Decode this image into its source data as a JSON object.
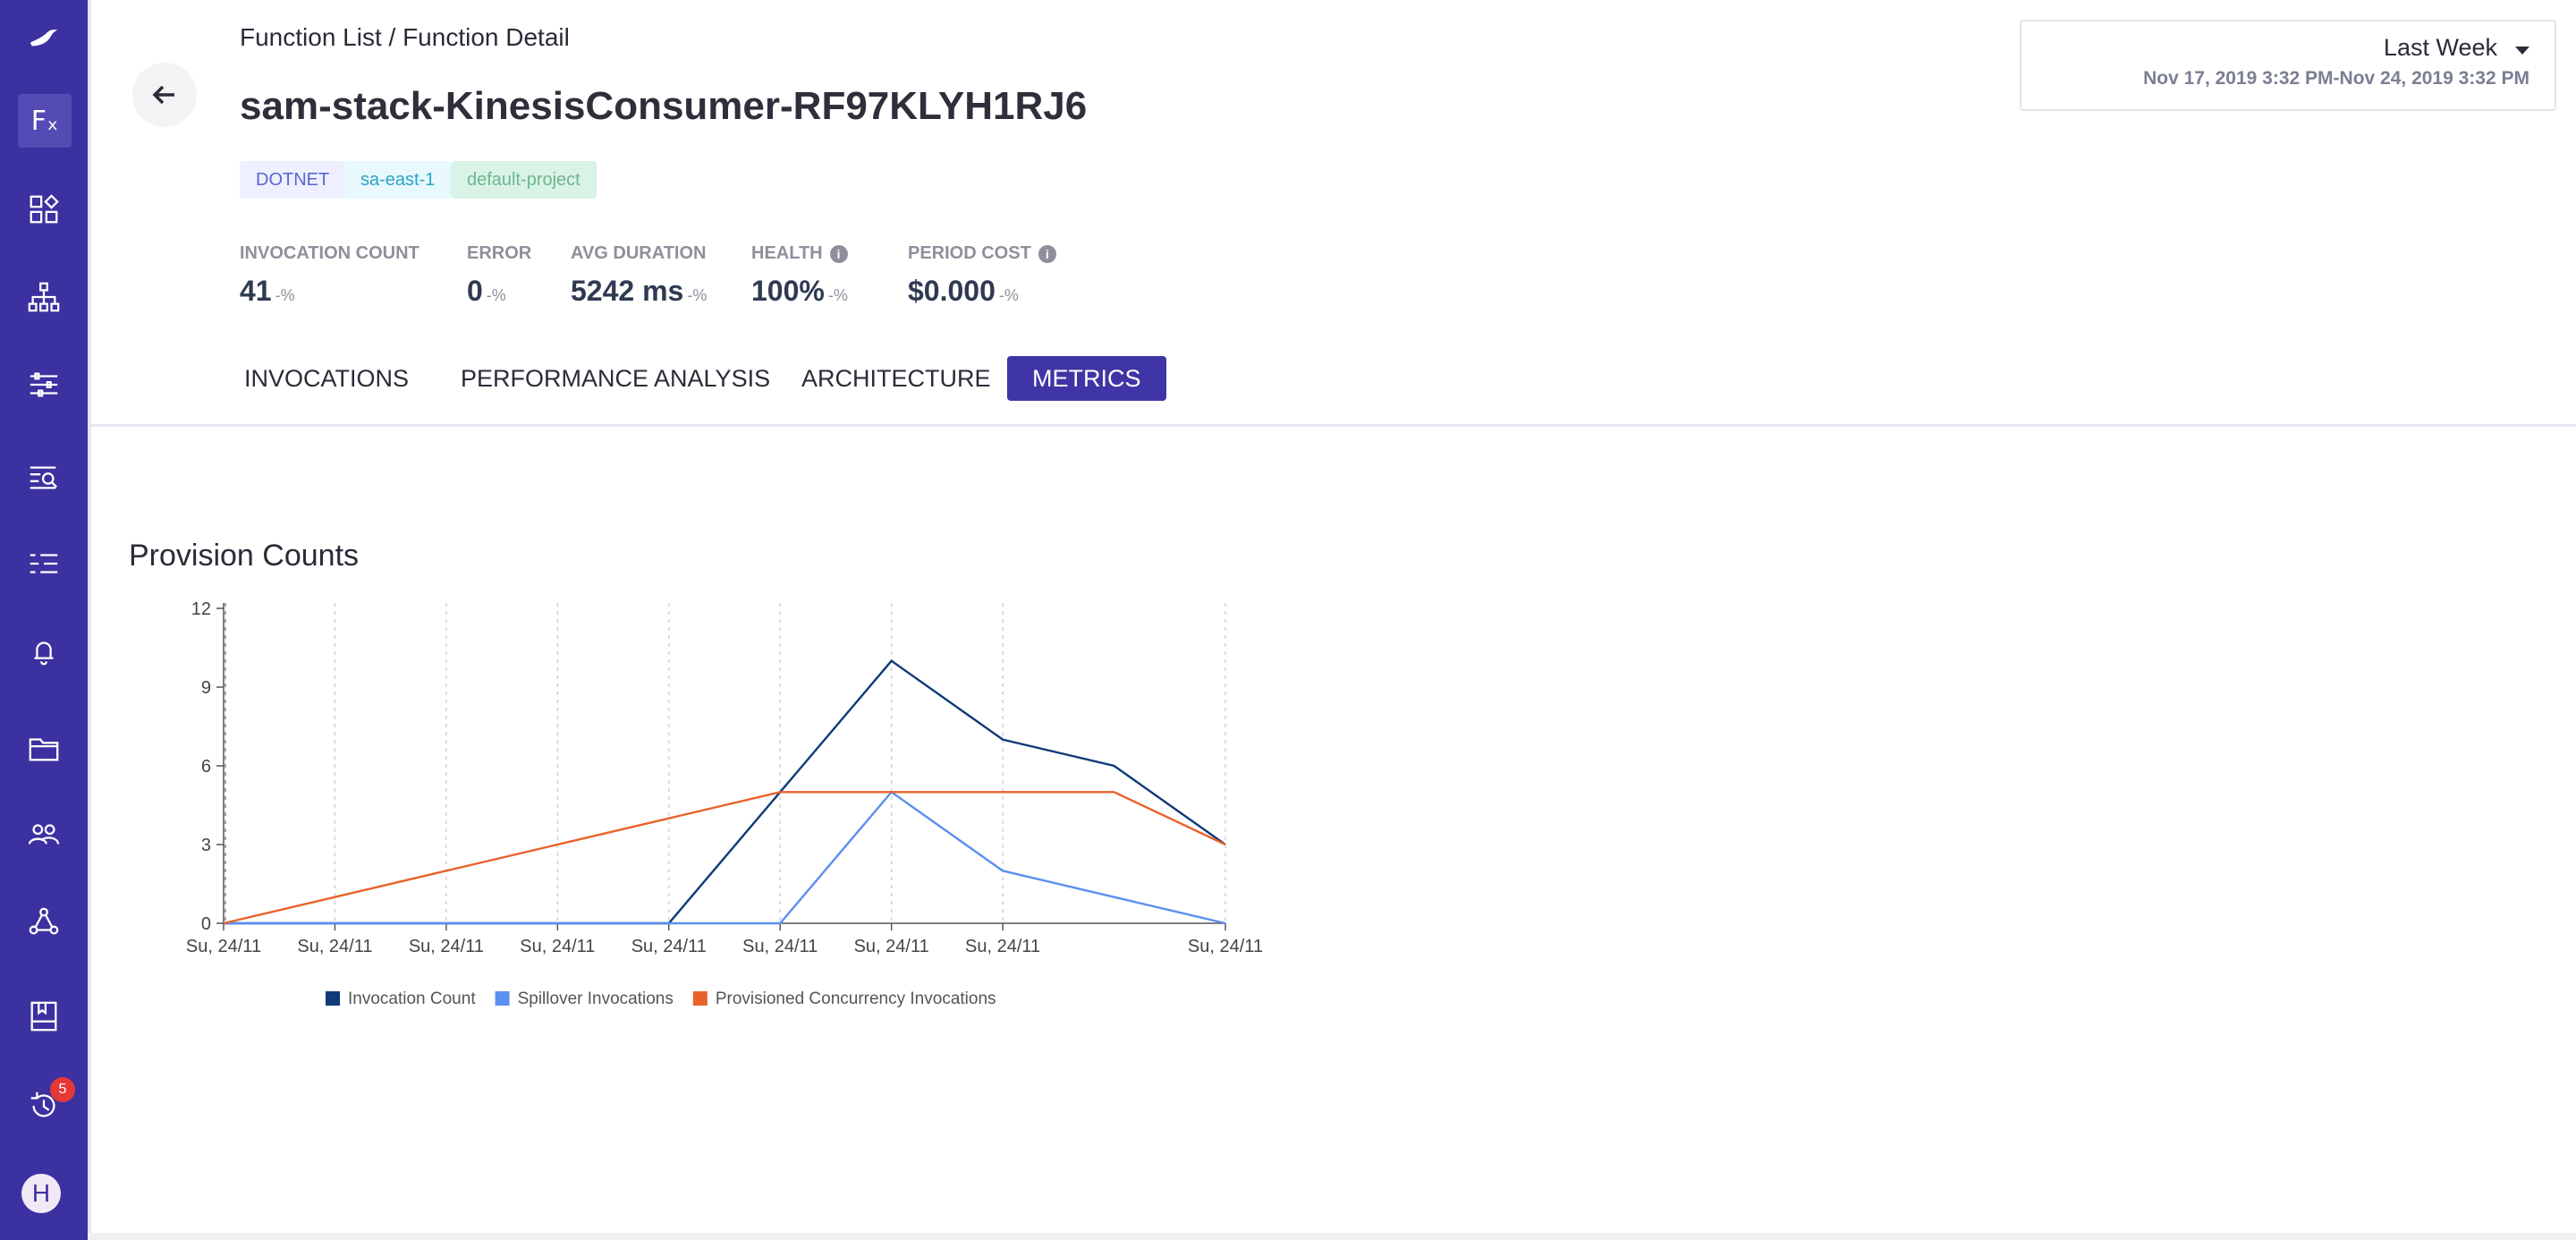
{
  "sidebar": {
    "fx_label": "Fₓ",
    "notification_count": "5",
    "avatar_initial": "H"
  },
  "header": {
    "breadcrumb": "Function List / Function Detail",
    "title": "sam-stack-KinesisConsumer-RF97KLYH1RJ6",
    "tags": {
      "runtime": "DOTNET",
      "region": "sa-east-1",
      "project": "default-project"
    }
  },
  "stats": {
    "invocation_count": {
      "label": "INVOCATION COUNT",
      "value": "41",
      "delta": "-%"
    },
    "error": {
      "label": "ERROR",
      "value": "0",
      "delta": "-%"
    },
    "avg_duration": {
      "label": "AVG DURATION",
      "value": "5242 ms",
      "delta": "-%"
    },
    "health": {
      "label": "HEALTH",
      "value": "100%",
      "delta": "-%"
    },
    "period_cost": {
      "label": "PERIOD COST",
      "value": "$0.000",
      "delta": "-%"
    }
  },
  "tabs": {
    "invocations": "INVOCATIONS",
    "performance": "PERFORMANCE ANALYSIS",
    "architecture": "ARCHITECTURE",
    "metrics": "METRICS"
  },
  "date_range": {
    "preset": "Last Week",
    "range_text": "Nov 17, 2019 3:32 PM-Nov 24, 2019 3:32 PM"
  },
  "chart_data": {
    "type": "line",
    "title": "Provision Counts",
    "x": [
      "Su, 24/11",
      "Su, 24/11",
      "Su, 24/11",
      "Su, 24/11",
      "Su, 24/11",
      "Su, 24/11",
      "Su, 24/11",
      "Su, 24/11",
      "",
      "Su, 24/11"
    ],
    "ylim": [
      0,
      12
    ],
    "yticks": [
      0,
      3,
      6,
      9,
      12
    ],
    "grid": "vertical-dashed",
    "legend_position": "bottom",
    "series": [
      {
        "name": "Invocation Count",
        "color": "#0e3a78",
        "values": [
          0,
          0,
          0,
          0,
          0,
          5,
          10,
          7,
          6,
          3
        ]
      },
      {
        "name": "Spillover Invocations",
        "color": "#5b8ff0",
        "values": [
          0,
          0,
          0,
          0,
          0,
          0,
          5,
          2,
          1,
          0
        ]
      },
      {
        "name": "Provisioned Concurrency Invocations",
        "color": "#e8622a",
        "values": [
          0,
          1,
          2,
          3,
          4,
          5,
          5,
          5,
          5,
          3
        ]
      }
    ]
  }
}
